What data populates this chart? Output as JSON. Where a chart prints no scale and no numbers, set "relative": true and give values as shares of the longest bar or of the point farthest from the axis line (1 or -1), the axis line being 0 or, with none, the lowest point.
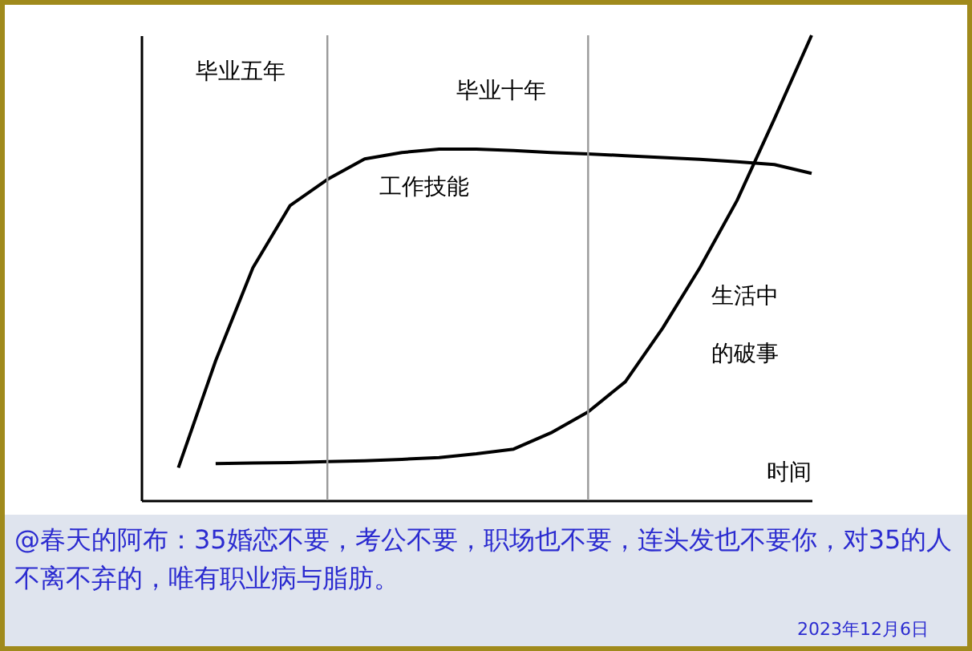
{
  "chart_data": {
    "type": "line",
    "relative": true,
    "xlabel": "时间",
    "legend": false,
    "marker": "none",
    "line_style": "solid",
    "categories": [
      null,
      null,
      null,
      null,
      null,
      null,
      null,
      null,
      null,
      null,
      null,
      null,
      null,
      null,
      null,
      null,
      null,
      null,
      null
    ],
    "series": [
      {
        "name": "工作技能",
        "color": "#000000",
        "values": [
          null,
          0.07,
          0.3,
          0.5,
          0.634,
          0.69,
          0.734,
          0.748,
          0.755,
          0.755,
          0.752,
          0.748,
          0.745,
          0.741,
          0.737,
          0.733,
          0.728,
          0.722,
          0.703
        ]
      },
      {
        "name": "生活中的破事",
        "color": "#000000",
        "values": [
          null,
          null,
          0.079,
          0.08,
          0.081,
          0.083,
          0.085,
          0.088,
          0.092,
          0.1,
          0.11,
          0.145,
          0.19,
          0.255,
          0.37,
          0.5,
          0.645,
          0.82,
          1
        ]
      }
    ],
    "annotations": [
      "毕业五年",
      "毕业十年",
      "@春天的阿布：35婚恋不要，考公不要，职场也不要，连头发也不要你，对35的人不离不弃的，唯有职业病与脂肪。",
      "2023年12月6日"
    ]
  }
}
